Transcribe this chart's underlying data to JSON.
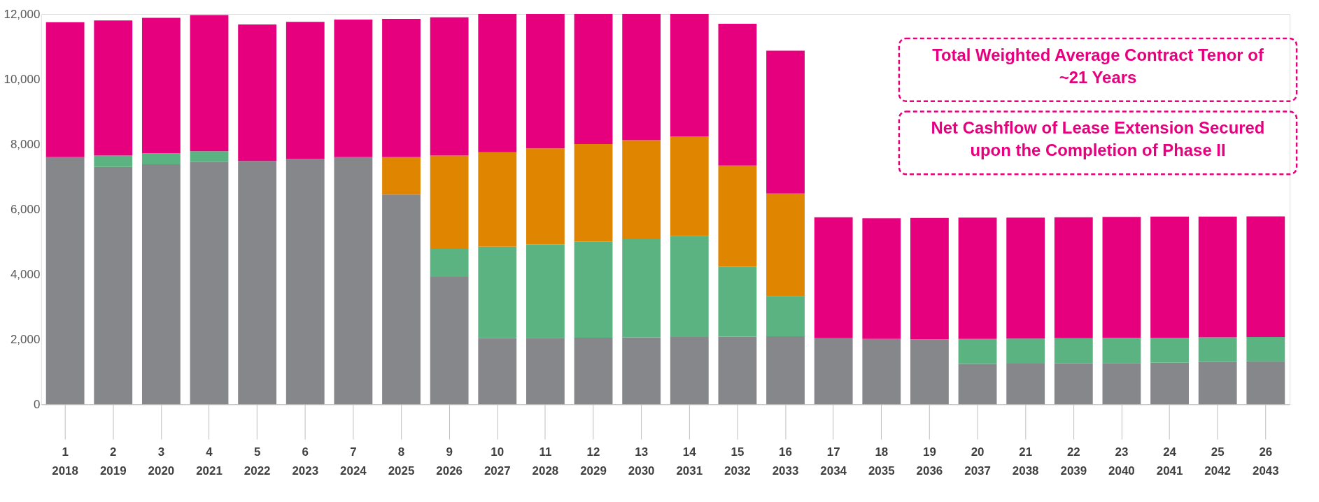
{
  "chart_data": {
    "type": "bar",
    "stacked": true,
    "categories": [
      "1\n2018",
      "2\n2019",
      "3\n2020",
      "4\n2021",
      "5\n2022",
      "6\n2023",
      "7\n2024",
      "8\n2025",
      "9\n2026",
      "10\n2027",
      "11\n2028",
      "12\n2029",
      "13\n2030",
      "14\n2031",
      "15\n2032",
      "16\n2033",
      "17\n2034",
      "18\n2035",
      "19\n2036",
      "20\n2037",
      "21\n2038",
      "22\n2039",
      "23\n2040",
      "24\n2041",
      "25\n2042",
      "26\n2043"
    ],
    "series": [
      {
        "color": "#86878b",
        "values": [
          7600,
          7300,
          7380,
          7450,
          7480,
          7550,
          7600,
          6450,
          3920,
          2030,
          2040,
          2050,
          2060,
          2070,
          2080,
          2090,
          2030,
          2010,
          2000,
          1240,
          1250,
          1260,
          1270,
          1280,
          1300,
          1320
        ]
      },
      {
        "color": "#5bb381",
        "values": [
          null,
          350,
          340,
          330,
          null,
          null,
          null,
          null,
          860,
          2820,
          2880,
          2950,
          3020,
          3100,
          2150,
          1240,
          null,
          null,
          null,
          770,
          770,
          770,
          770,
          770,
          760,
          750
        ]
      },
      {
        "color": "#e08500",
        "values": [
          null,
          null,
          null,
          null,
          null,
          null,
          null,
          1150,
          2870,
          2900,
          2950,
          3000,
          3040,
          3070,
          3110,
          3150,
          null,
          null,
          null,
          null,
          null,
          null,
          null,
          null,
          null,
          null
        ]
      },
      {
        "color": "#e6007e",
        "values": [
          4150,
          4150,
          4160,
          4190,
          4200,
          4210,
          4230,
          4250,
          4250,
          4250,
          4130,
          4000,
          3880,
          3760,
          4360,
          4390,
          3720,
          3710,
          3730,
          3730,
          3720,
          3720,
          3720,
          3720,
          3710,
          3710
        ]
      }
    ],
    "ylim": [
      0,
      12000
    ],
    "yticks": [
      0,
      {
        "value": 2000,
        "label": "2,000"
      },
      {
        "value": 4000,
        "label": "4,000"
      },
      {
        "value": 6000,
        "label": "6,000"
      },
      {
        "value": 8000,
        "label": "8,000"
      },
      {
        "value": 10000,
        "label": "10,000"
      },
      {
        "value": 12000,
        "label": "12,000"
      }
    ],
    "grid": false,
    "annotations": [
      "Total Weighted Average Contract Tenor of\n~21 Years",
      "Net Cashflow of Lease Extension Secured\nupon the Completion of Phase II"
    ]
  }
}
